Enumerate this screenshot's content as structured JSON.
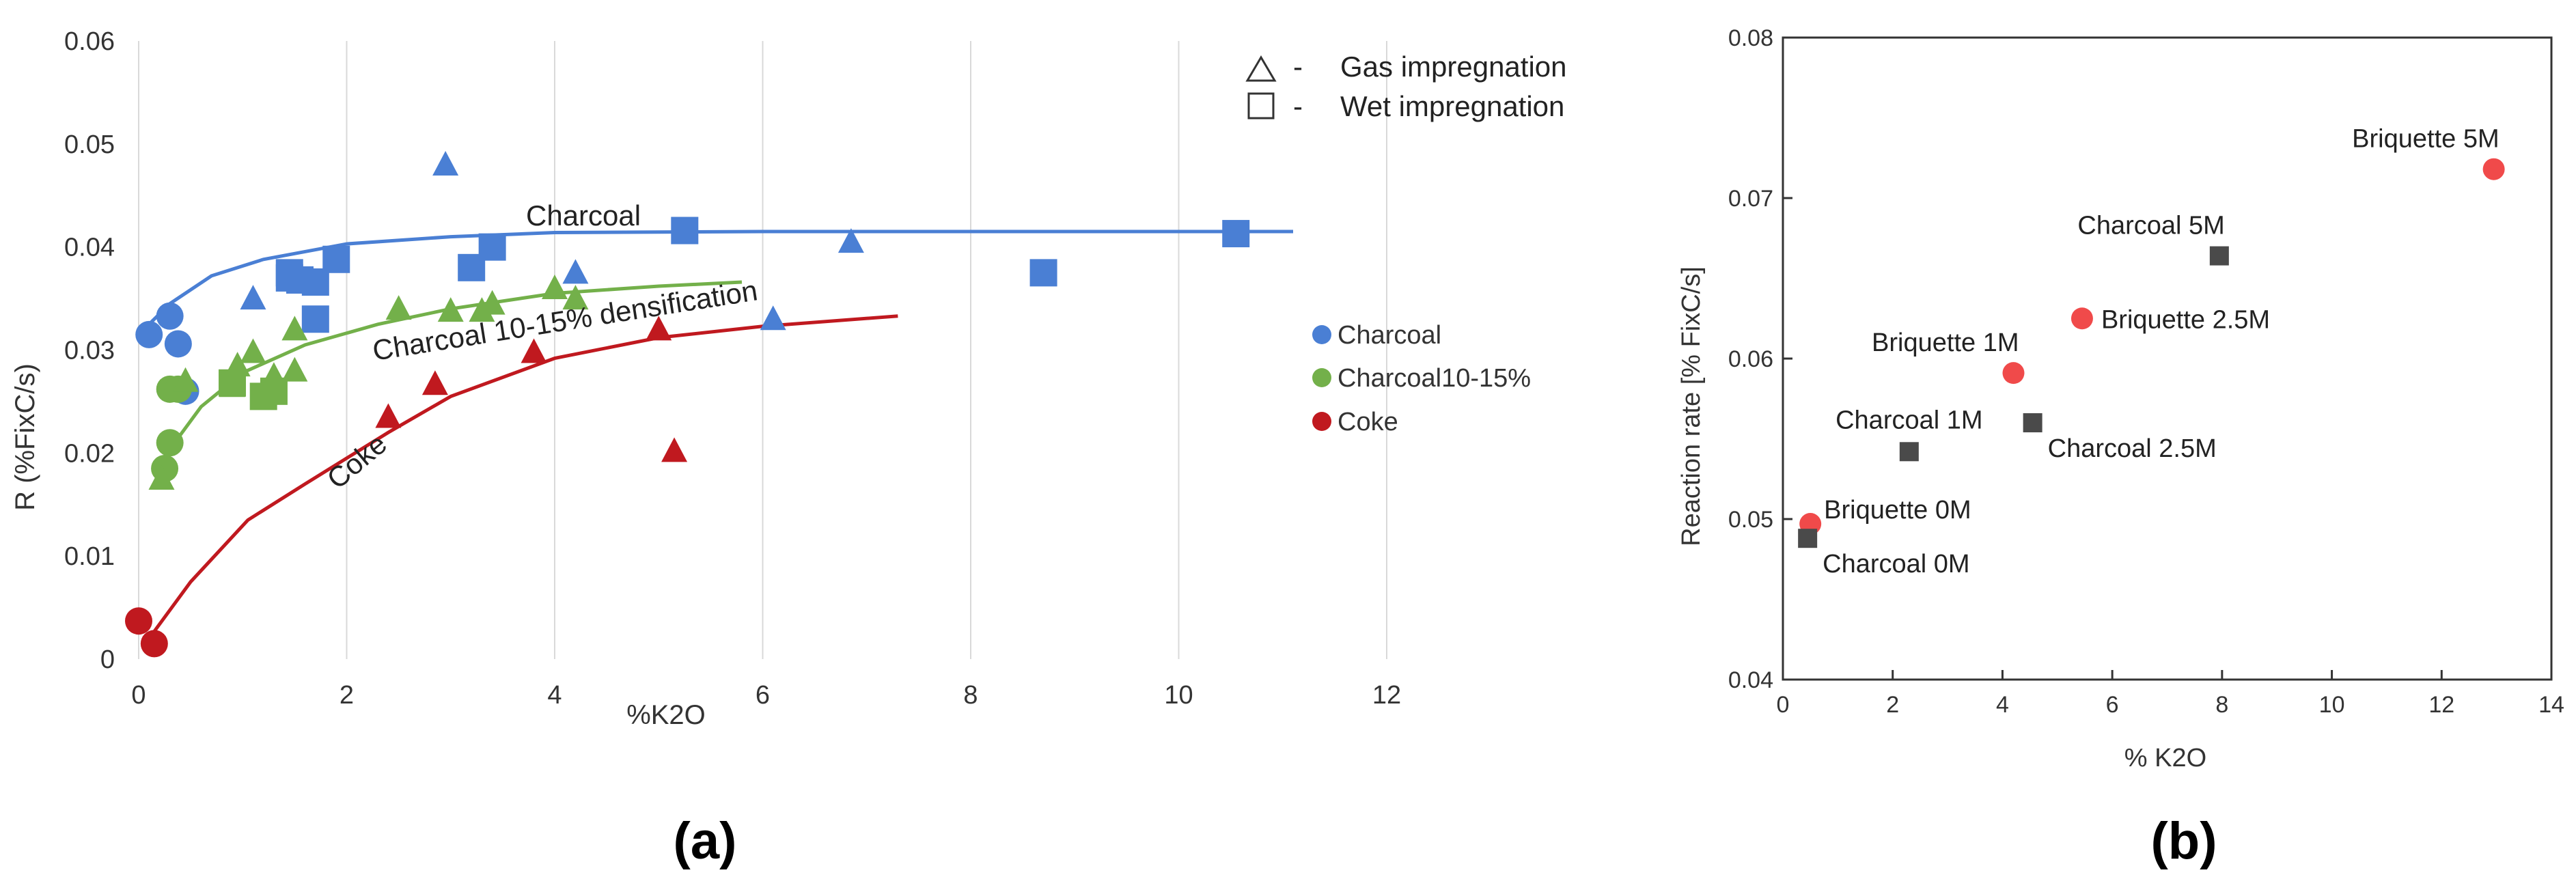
{
  "panel_labels": {
    "a": "(a)",
    "b": "(b)"
  },
  "colors": {
    "charcoal": "#4a7fd4",
    "charcoal_dense": "#73b04a",
    "coke": "#c0191f",
    "briquette": "#f04a4a",
    "charcoal_b": "#4a4a4a"
  },
  "chart_data": [
    {
      "type": "scatter",
      "panel": "(a)",
      "xlabel": "%K2O",
      "ylabel": "R (%FixC/s)",
      "xlim": [
        0,
        12
      ],
      "ylim": [
        0,
        0.06
      ],
      "xticks": [
        "0",
        "2",
        "4",
        "6",
        "8",
        "10",
        "12"
      ],
      "yticks": [
        "0",
        "0.01",
        "0.02",
        "0.03",
        "0.04",
        "0.05",
        "0.06"
      ],
      "grid": "vertical",
      "marker_legend": [
        {
          "symbol": "△",
          "dash": "-",
          "label": "Gas impregnation"
        },
        {
          "symbol": "□",
          "dash": "-",
          "label": "Wet impregnation"
        }
      ],
      "legend": [
        "Charcoal",
        "Charcoal10-15%",
        "Coke"
      ],
      "curve_labels": {
        "charcoal": "Charcoal",
        "dense": "Charcoal 10-15% densification",
        "coke": "Coke"
      },
      "series": [
        {
          "name": "Charcoal",
          "color": "#4a7fd4",
          "circles": [
            [
              0.1,
              0.0315
            ],
            [
              0.3,
              0.0333
            ],
            [
              0.38,
              0.0306
            ],
            [
              0.45,
              0.026
            ]
          ],
          "triangles": [
            [
              1.1,
              0.035
            ],
            [
              2.95,
              0.048
            ],
            [
              4.2,
              0.0375
            ],
            [
              6.1,
              0.033
            ],
            [
              6.85,
              0.0405
            ]
          ],
          "squares": [
            [
              1.45,
              0.0375
            ],
            [
              1.45,
              0.037
            ],
            [
              1.55,
              0.0368
            ],
            [
              1.7,
              0.0366
            ],
            [
              1.7,
              0.033
            ],
            [
              1.9,
              0.0388
            ],
            [
              3.2,
              0.038
            ],
            [
              3.4,
              0.04
            ],
            [
              5.25,
              0.0416
            ],
            [
              8.7,
              0.0375
            ],
            [
              10.55,
              0.0413
            ]
          ],
          "fit": [
            [
              0.05,
              0.032
            ],
            [
              0.3,
              0.0345
            ],
            [
              0.7,
              0.0372
            ],
            [
              1.2,
              0.0388
            ],
            [
              2,
              0.0403
            ],
            [
              3,
              0.041
            ],
            [
              4,
              0.0414
            ],
            [
              6,
              0.0415
            ],
            [
              8,
              0.0415
            ],
            [
              11.1,
              0.0415
            ]
          ]
        },
        {
          "name": "Charcoal10-15%",
          "color": "#73b04a",
          "circles": [
            [
              0.25,
              0.0185
            ],
            [
              0.3,
              0.021
            ],
            [
              0.3,
              0.0262
            ],
            [
              0.38,
              0.0262
            ]
          ],
          "triangles": [
            [
              0.22,
              0.0175
            ],
            [
              0.45,
              0.027
            ],
            [
              0.9,
              0.0265
            ],
            [
              0.95,
              0.0285
            ],
            [
              1.1,
              0.0298
            ],
            [
              1.3,
              0.0275
            ],
            [
              1.5,
              0.032
            ],
            [
              1.5,
              0.028
            ],
            [
              2.5,
              0.034
            ],
            [
              3.0,
              0.0338
            ],
            [
              3.3,
              0.0338
            ],
            [
              3.4,
              0.0345
            ],
            [
              4.0,
              0.036
            ],
            [
              4.2,
              0.035
            ]
          ],
          "squares": [
            [
              0.9,
              0.0268
            ],
            [
              1.2,
              0.0255
            ],
            [
              1.3,
              0.026
            ]
          ],
          "fit": [
            [
              0.2,
              0.019
            ],
            [
              0.6,
              0.0245
            ],
            [
              1.0,
              0.0278
            ],
            [
              1.6,
              0.0305
            ],
            [
              2.3,
              0.0325
            ],
            [
              3,
              0.034
            ],
            [
              4,
              0.0355
            ],
            [
              5,
              0.0362
            ],
            [
              5.8,
              0.0366
            ]
          ]
        },
        {
          "name": "Coke",
          "color": "#c0191f",
          "circles": [
            [
              0,
              0.0037
            ],
            [
              0.15,
              0.0015
            ]
          ],
          "triangles": [
            [
              2.4,
              0.0235
            ],
            [
              2.85,
              0.0267
            ],
            [
              3.8,
              0.0298
            ],
            [
              5.0,
              0.032
            ],
            [
              5.15,
              0.0202
            ]
          ],
          "squares": [],
          "fit": [
            [
              0.1,
              0.002
            ],
            [
              0.5,
              0.0075
            ],
            [
              1.05,
              0.0135
            ],
            [
              1.6,
              0.017
            ],
            [
              2.4,
              0.022
            ],
            [
              3,
              0.0255
            ],
            [
              4,
              0.0292
            ],
            [
              5,
              0.0312
            ],
            [
              6,
              0.0323
            ],
            [
              7.3,
              0.0333
            ]
          ]
        }
      ]
    },
    {
      "type": "scatter",
      "panel": "(b)",
      "xlabel": "% K2O",
      "ylabel": "Reaction rate [% FixC/s]",
      "xlim": [
        0,
        14
      ],
      "ylim": [
        0.04,
        0.08
      ],
      "xticks": [
        "0",
        "2",
        "4",
        "6",
        "8",
        "10",
        "12",
        "14"
      ],
      "yticks": [
        "0.04",
        "0.05",
        "0.06",
        "0.07",
        "0.08"
      ],
      "series": [
        {
          "name": "Briquette",
          "marker": "circle",
          "color": "#f04a4a",
          "points": [
            {
              "label": "Briquette 0M",
              "x": 0.5,
              "y": 0.0497,
              "anchor": "right-above"
            },
            {
              "label": "Briquette 1M",
              "x": 4.2,
              "y": 0.0591,
              "anchor": "left-above"
            },
            {
              "label": "Briquette 2.5M",
              "x": 5.45,
              "y": 0.0625,
              "anchor": "right"
            },
            {
              "label": "Briquette 5M",
              "x": 12.95,
              "y": 0.0718,
              "anchor": "left-above"
            }
          ]
        },
        {
          "name": "Charcoal",
          "marker": "square",
          "color": "#4a4a4a",
          "points": [
            {
              "label": "Charcoal 0M",
              "x": 0.45,
              "y": 0.0488,
              "anchor": "right-below"
            },
            {
              "label": "Charcoal 1M",
              "x": 2.3,
              "y": 0.0542,
              "anchor": "above"
            },
            {
              "label": "Charcoal 2.5M",
              "x": 4.55,
              "y": 0.056,
              "anchor": "right-below"
            },
            {
              "label": "Charcoal 5M",
              "x": 7.95,
              "y": 0.0664,
              "anchor": "left-above"
            }
          ]
        }
      ]
    }
  ]
}
